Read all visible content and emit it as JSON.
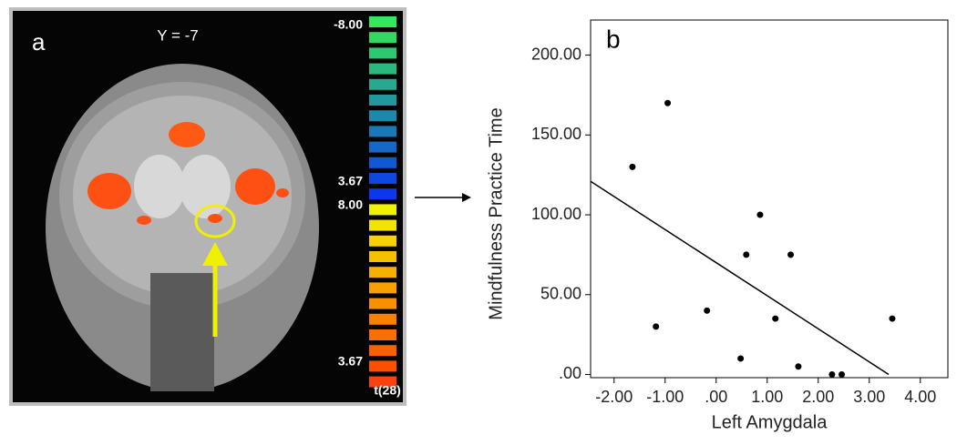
{
  "panel_a": {
    "label": "a",
    "slice": "Y = -7",
    "scale_labels": [
      "-8.00",
      "3.67",
      "8.00",
      "3.67"
    ],
    "scale_title": "t(28)"
  },
  "chart_data": {
    "type": "scatter",
    "panel_label": "b",
    "x_label": "Left Amygdala",
    "y_label": "Mindfulness Practice Time",
    "x": [
      -1.64,
      -0.95,
      -1.18,
      -0.18,
      0.86,
      0.59,
      1.46,
      1.16,
      0.48,
      1.61,
      2.27,
      2.46,
      3.45
    ],
    "y": [
      130,
      170,
      30,
      40,
      100,
      75,
      75,
      35,
      10,
      5,
      0,
      0,
      35
    ],
    "color": "#000000",
    "fit_line": {
      "x": [
        -2.46,
        3.38
      ],
      "y": [
        121,
        0
      ]
    },
    "xlim": [
      -2.46,
      4.54
    ],
    "ylim": [
      -2,
      222
    ],
    "xticks": [
      {
        "value": -2,
        "label": "-2.00"
      },
      {
        "value": -1,
        "label": "-1.00"
      },
      {
        "value": 0,
        "label": ".00"
      },
      {
        "value": 1,
        "label": "1.00"
      },
      {
        "value": 2,
        "label": "2.00"
      },
      {
        "value": 3,
        "label": "3.00"
      },
      {
        "value": 4,
        "label": "4.00"
      }
    ],
    "yticks": [
      {
        "value": 0,
        "label": ".00"
      },
      {
        "value": 50,
        "label": "50.00"
      },
      {
        "value": 100,
        "label": "100.00"
      },
      {
        "value": 150,
        "label": "150.00"
      },
      {
        "value": 200,
        "label": "200.00"
      }
    ]
  }
}
